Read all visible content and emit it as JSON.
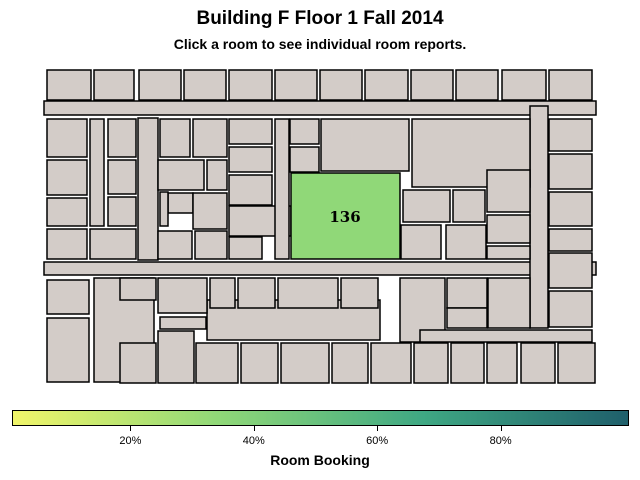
{
  "header": {
    "title": "Building F Floor 1 Fall 2014",
    "subtitle": "Click a room to see individual room reports."
  },
  "map": {
    "highlight_room": {
      "label": "136",
      "booking_fraction": 0.3,
      "color": "#90d878"
    },
    "room_color": "#d3ccc8"
  },
  "legend": {
    "title": "Room Booking",
    "colors": [
      "#f0f56a",
      "#90d878",
      "#3fa883",
      "#1f5f6b"
    ],
    "ticks": [
      {
        "label": "20%",
        "value": 20
      },
      {
        "label": "40%",
        "value": 40
      },
      {
        "label": "60%",
        "value": 60
      },
      {
        "label": "80%",
        "value": 80
      }
    ]
  }
}
